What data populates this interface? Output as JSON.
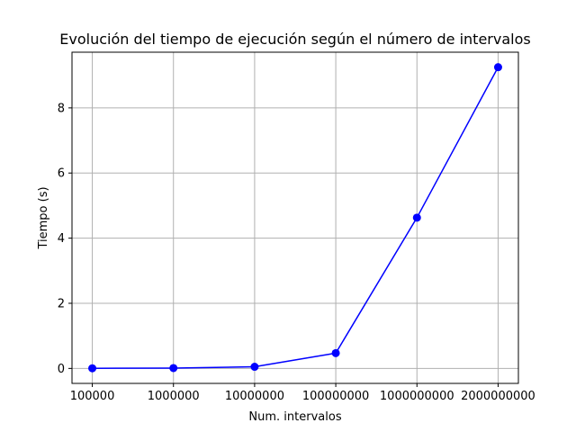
{
  "chart_data": {
    "type": "line",
    "title": "Evolución del tiempo de ejecución según el número de intervalos",
    "xlabel": "Num. intervalos",
    "ylabel": "Tiempo (s)",
    "categories": [
      "100000",
      "1000000",
      "10000000",
      "100000000",
      "1000000000",
      "2000000000"
    ],
    "series": [
      {
        "values": [
          0.004,
          0.01,
          0.05,
          0.47,
          4.63,
          9.25
        ],
        "color": "#0000ff",
        "marker": "circle"
      }
    ],
    "yticks": [
      0,
      2,
      4,
      6,
      8
    ],
    "ylim": [
      -0.46,
      9.71
    ],
    "grid": true,
    "legend": "none"
  }
}
